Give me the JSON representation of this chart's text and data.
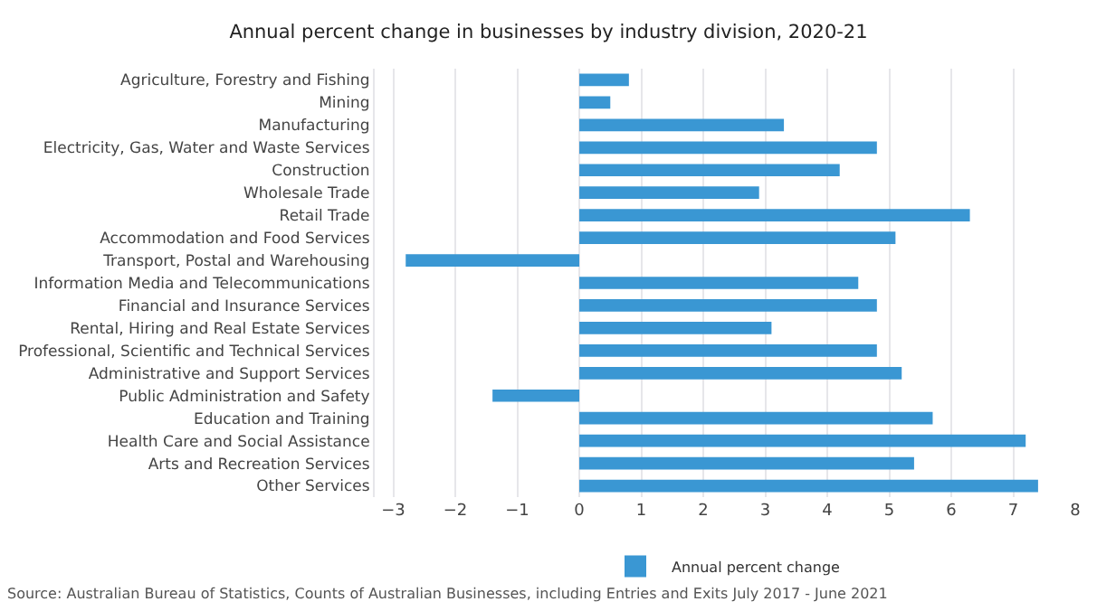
{
  "chart_data": {
    "type": "bar",
    "orientation": "horizontal",
    "title": "Annual percent change in businesses by industry division, 2020-21",
    "categories": [
      "Agriculture, Forestry and Fishing",
      "Mining",
      "Manufacturing",
      "Electricity, Gas, Water and Waste Services",
      "Construction",
      "Wholesale Trade",
      "Retail Trade",
      "Accommodation and Food Services",
      "Transport, Postal and Warehousing",
      "Information Media and Telecommunications",
      "Financial and Insurance Services",
      "Rental, Hiring and Real Estate Services",
      "Professional, Scientific and Technical Services",
      "Administrative and Support Services",
      "Public Administration and Safety",
      "Education and Training",
      "Health Care and Social Assistance",
      "Arts and Recreation Services",
      "Other Services"
    ],
    "series": [
      {
        "name": "Annual percent change",
        "color": "#3a97d3",
        "values": [
          0.8,
          0.5,
          3.3,
          4.8,
          4.2,
          2.9,
          6.3,
          5.1,
          -2.8,
          4.5,
          4.8,
          3.1,
          4.8,
          5.2,
          -1.4,
          5.7,
          7.2,
          5.4,
          7.4
        ]
      }
    ],
    "xlim": [
      -3.3,
      8
    ],
    "xticks": [
      -3,
      -2,
      -1,
      0,
      1,
      2,
      3,
      4,
      5,
      6,
      7,
      8
    ],
    "grid": "x",
    "legend": "bottom",
    "annotations": [
      "Source: Australian Bureau of Statistics, Counts of Australian Businesses, including Entries and Exits July 2017 - June 2021"
    ]
  }
}
